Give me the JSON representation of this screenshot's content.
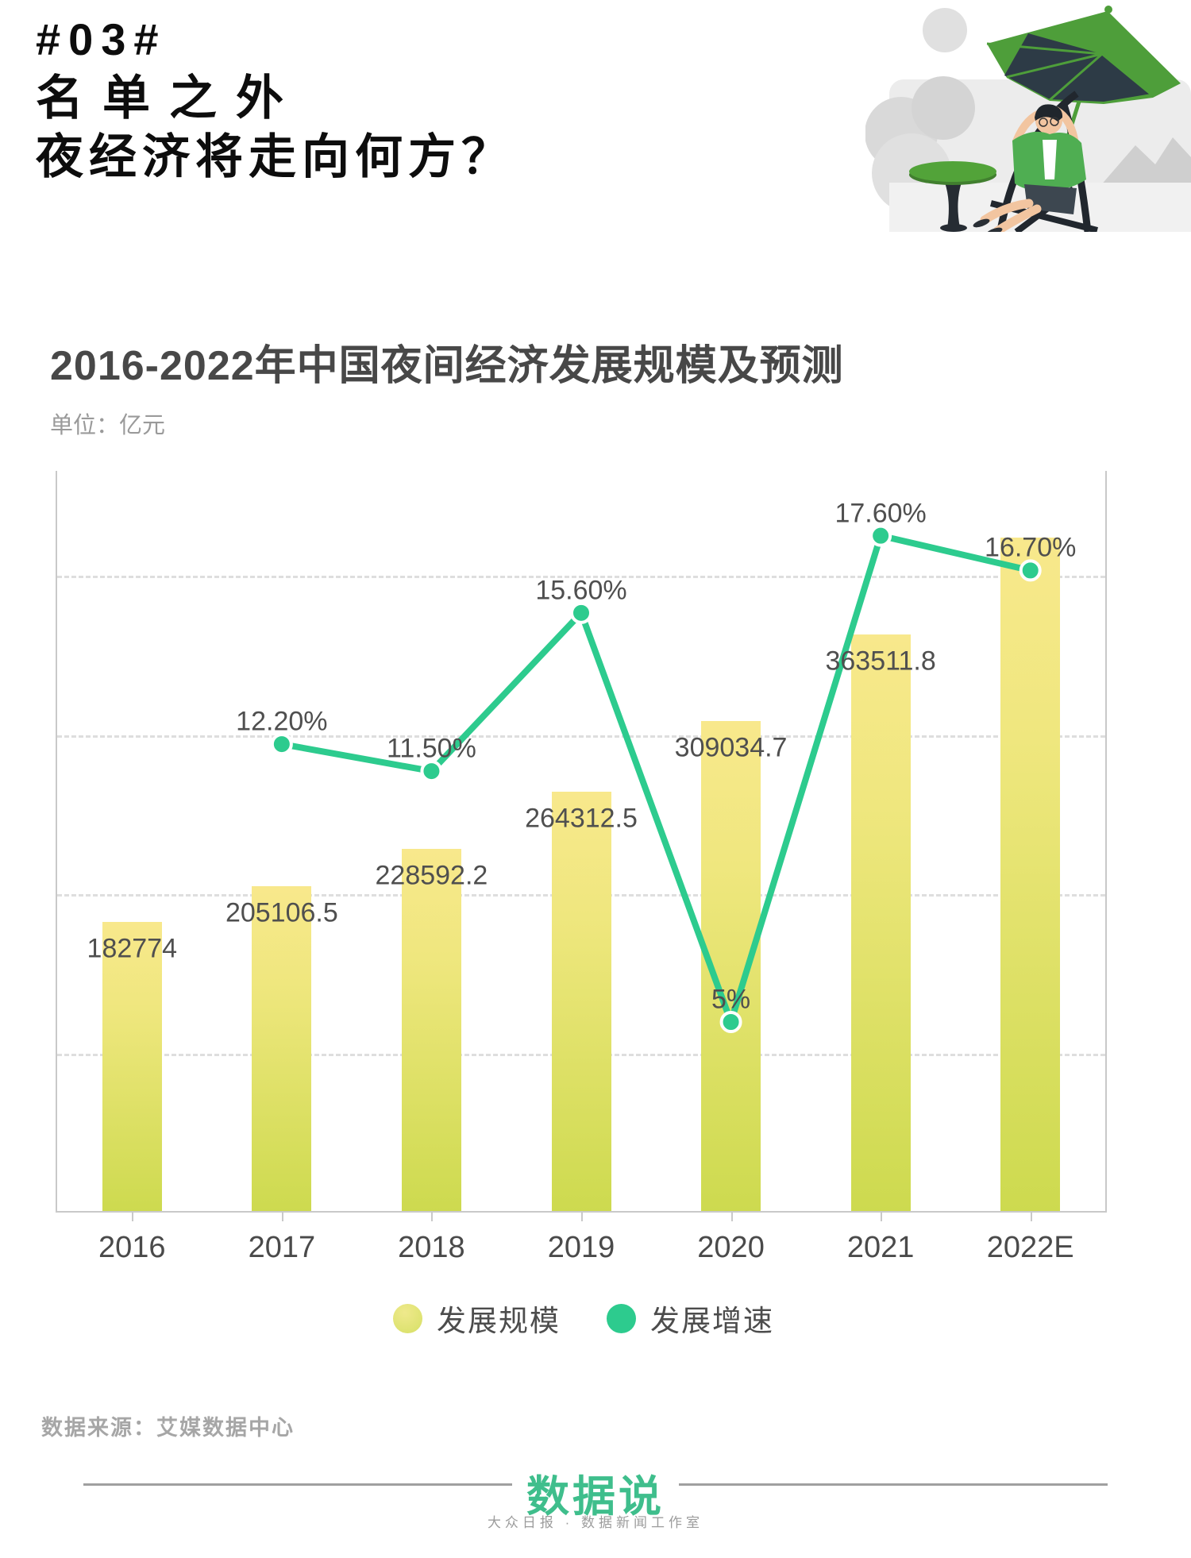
{
  "header": {
    "tag": "#03#",
    "line1": "名单之外",
    "line2": "夜经济将走向何方？"
  },
  "chart": {
    "title": "2016-2022年中国夜间经济发展规模及预测",
    "unit_label": "单位：亿元",
    "legend": [
      {
        "label": "发展规模",
        "type": "bar",
        "color": "#d6e065"
      },
      {
        "label": "发展增速",
        "type": "line",
        "color": "#2dcb8e"
      }
    ],
    "chart_data": {
      "type": "bar",
      "title": "2016-2022年中国夜间经济发展规模及预测",
      "unit": "亿元",
      "categories": [
        "2016",
        "2017",
        "2018",
        "2019",
        "2020",
        "2021",
        "2022E"
      ],
      "series": [
        {
          "name": "发展规模",
          "type": "bar",
          "values": [
            182774,
            205106.5,
            228592.2,
            264312.5,
            309034.7,
            363511.8,
            424000
          ],
          "labels": [
            "182774",
            "205106.5",
            "228592.2",
            "264312.5",
            "309034.7",
            "363511.8",
            ""
          ],
          "note": "2022E bar shows no numeric label; value estimated from bar height"
        },
        {
          "name": "发展增速",
          "type": "line",
          "values": [
            null,
            12.2,
            11.5,
            15.6,
            5,
            17.6,
            16.7
          ],
          "labels": [
            "",
            "12.20%",
            "11.50%",
            "15.60%",
            "5%",
            "17.60%",
            "16.70%"
          ]
        }
      ],
      "left_axis": {
        "min": 0,
        "gridline_values": [
          100000,
          200000,
          300000,
          400000
        ],
        "grid_style": "dashed",
        "tick_labels_shown": false
      },
      "legend_position": "bottom",
      "xlabel": "",
      "ylabel": "亿元"
    }
  },
  "source": {
    "text": "数据来源：艾媒数据中心"
  },
  "footer": {
    "logo_text": "数据说",
    "tagline": "大众日报 · 数据新闻工作室"
  },
  "colors": {
    "bar_gradient_top": "#f8e88c",
    "bar_gradient_bottom": "#cdda4f",
    "line_green": "#2dcb8e",
    "title_text": "#484848",
    "value_label": "#4f4f4f",
    "axis_line": "#c9c9c9",
    "gridline": "#dedede",
    "unit_text": "#9a9a9a",
    "source_text": "#a6a6a6",
    "logo_green": "#3fbe8c"
  }
}
